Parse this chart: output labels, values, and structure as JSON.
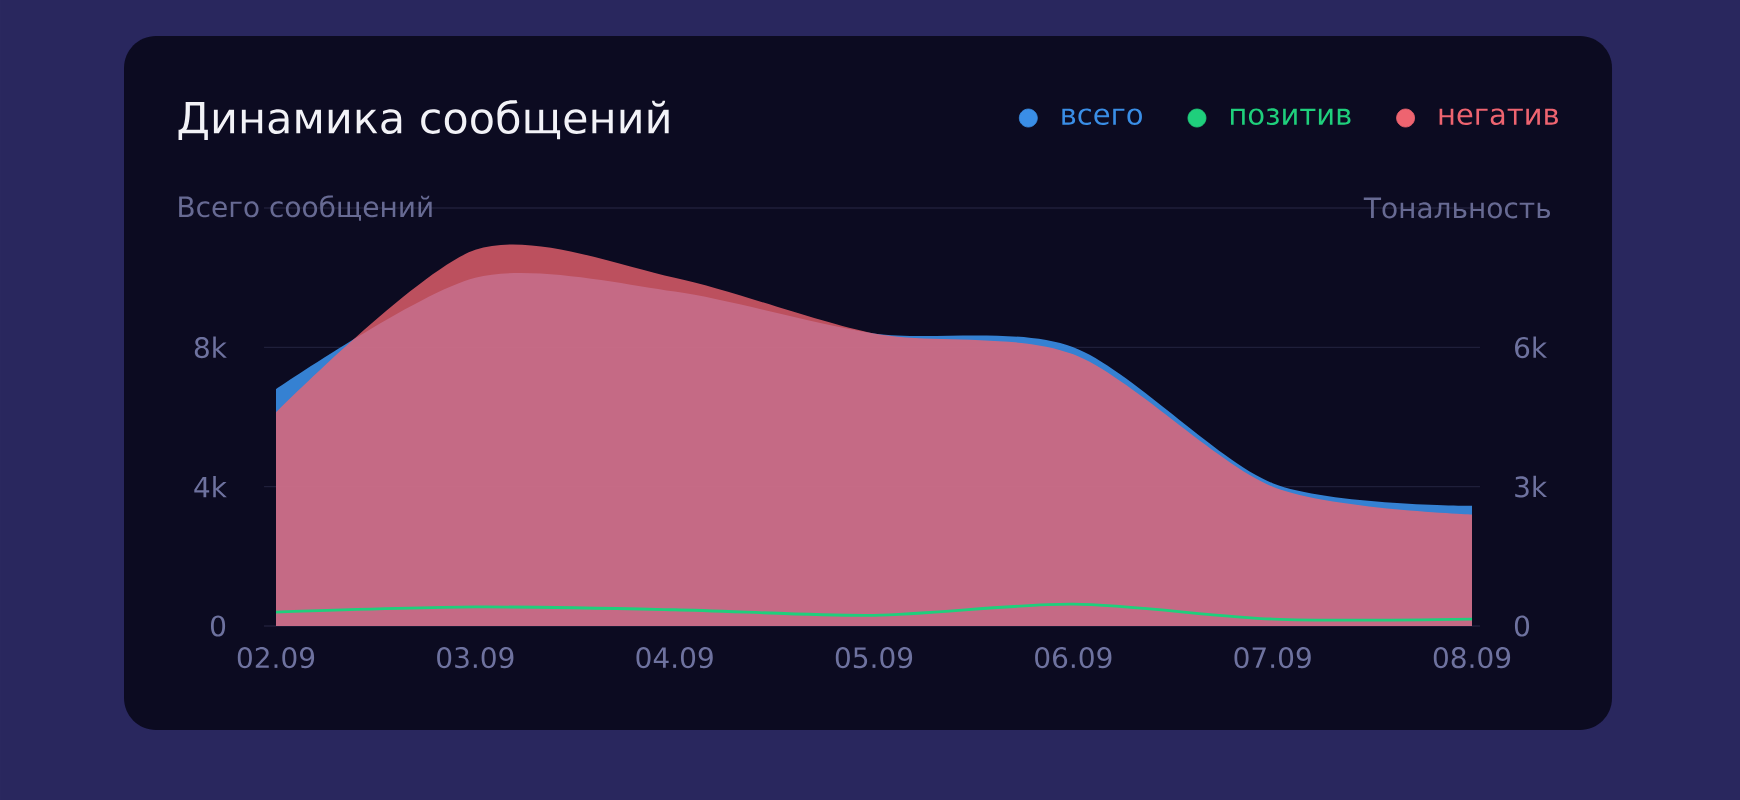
{
  "chart_data": {
    "type": "area",
    "title": "Динамика сообщений",
    "ylabel": "Всего сообщений",
    "y2label": "Тональность",
    "categories": [
      "02.09",
      "03.09",
      "04.09",
      "05.09",
      "06.09",
      "07.09",
      "08.09"
    ],
    "series": [
      {
        "name": "всего",
        "color": "#3a8ee6",
        "values": [
          6800,
          10000,
          9600,
          8400,
          8000,
          4100,
          3450
        ]
      },
      {
        "name": "позитив",
        "color": "#1fcf7c",
        "type": "line",
        "axis": "y2",
        "values": [
          300,
          410,
          350,
          230,
          470,
          150,
          150
        ]
      },
      {
        "name": "негатив",
        "color": "#ee6470",
        "axis": "y2",
        "values": [
          4600,
          8100,
          7500,
          6300,
          5850,
          3000,
          2400
        ]
      }
    ],
    "ylim": [
      0,
      12000
    ],
    "yticks": [
      0,
      {
        "value": 4000,
        "label": "4k"
      },
      {
        "value": 8000,
        "label": "8k"
      },
      {
        "value": 12000,
        "label": null
      }
    ],
    "y2lim": [
      0,
      9000
    ],
    "y2ticks": [
      0,
      {
        "value": 3000,
        "label": "3k"
      },
      {
        "value": 6000,
        "label": "6k"
      },
      {
        "value": 9000,
        "label": null
      }
    ],
    "grid": "y",
    "legend": "top right"
  }
}
